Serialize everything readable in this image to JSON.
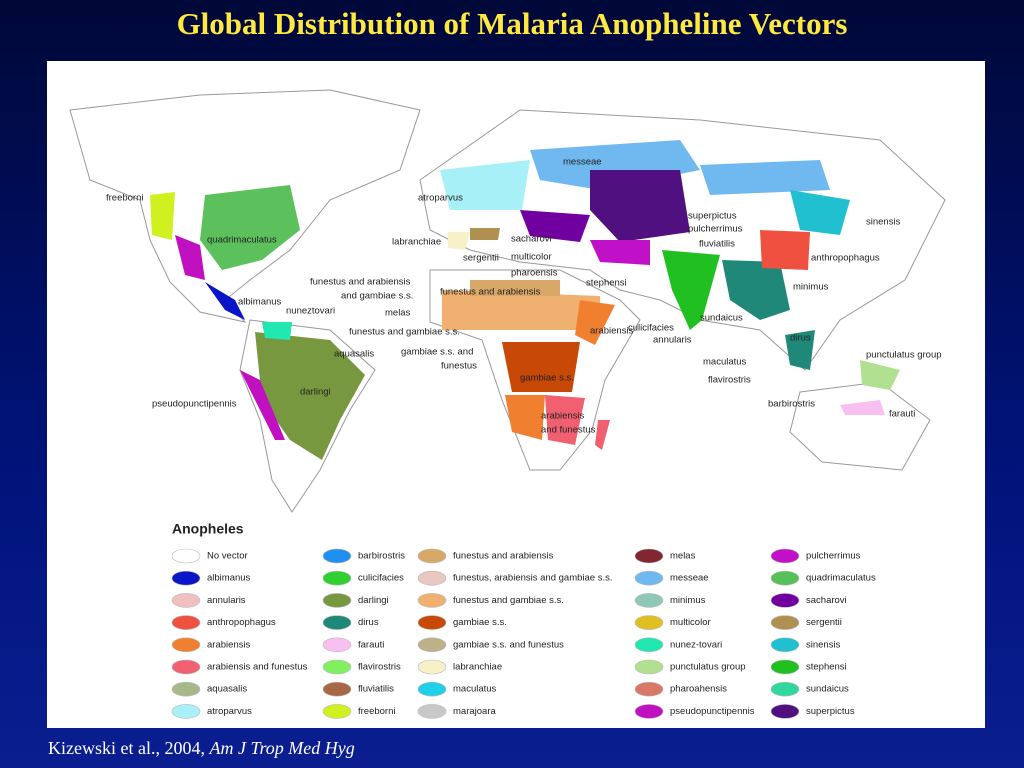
{
  "header": {
    "title": "Global Distribution of  Malaria Anopheline Vectors"
  },
  "map_labels": [
    "freeborni",
    "quadrimaculatus",
    "albimanus",
    "nuneztovari",
    "aquasalis",
    "darlingi",
    "pseudopunctipennis",
    "atroparvus",
    "labranchiae",
    "sergentii",
    "sacharovi",
    "multicolor",
    "pharoensis",
    "funestus and arabiensis",
    "and gambiae s.s.",
    "melas",
    "funestus and arabiensis",
    "funestus and gambiae s.s.",
    "gambiae s.s. and",
    "funestus",
    "messeae",
    "superpictus",
    "pulcherrimus",
    "fluviatilis",
    "stephensi",
    "culicifacies",
    "sundaicus",
    "annularis",
    "arabiensis",
    "gambiae s.s.",
    "arabiensis",
    "and funestus",
    "sinensis",
    "anthropophagus",
    "minimus",
    "dirus",
    "maculatus",
    "flavirostris",
    "barbirostris",
    "punctulatus group",
    "farauti"
  ],
  "legend": {
    "title": "Anopheles",
    "items": [
      {
        "label": "No vector",
        "color": "#ffffff"
      },
      {
        "label": "albimanus",
        "color": "#0a14c8"
      },
      {
        "label": "annularis",
        "color": "#f0c0c0"
      },
      {
        "label": "anthropophagus",
        "color": "#f05040"
      },
      {
        "label": "arabiensis",
        "color": "#f08030"
      },
      {
        "label": "arabiensis and funestus",
        "color": "#f06070"
      },
      {
        "label": "aquasalis",
        "color": "#a8b888"
      },
      {
        "label": "atroparvus",
        "color": "#a8f0f8"
      },
      {
        "label": "barbirostris",
        "color": "#2090f0"
      },
      {
        "label": "culicifacies",
        "color": "#30d030"
      },
      {
        "label": "darlingi",
        "color": "#789840"
      },
      {
        "label": "dirus",
        "color": "#208878"
      },
      {
        "label": "farauti",
        "color": "#f8c0f0"
      },
      {
        "label": "flavirostris",
        "color": "#80f060"
      },
      {
        "label": "fluviatilis",
        "color": "#a86848"
      },
      {
        "label": "freeborni",
        "color": "#d0f020"
      },
      {
        "label": "funestus and arabiensis",
        "color": "#d8a868"
      },
      {
        "label": "funestus, arabiensis and gambiae s.s.",
        "color": "#e8c8c0"
      },
      {
        "label": "funestus and gambiae s.s.",
        "color": "#f0b070"
      },
      {
        "label": "gambiae s.s.",
        "color": "#c84808"
      },
      {
        "label": "gambiae s.s. and funestus",
        "color": "#c0b088"
      },
      {
        "label": "labranchiae",
        "color": "#f8f0c8"
      },
      {
        "label": "maculatus",
        "color": "#20d0e8"
      },
      {
        "label": "marajoara",
        "color": "#c8c8c8"
      },
      {
        "label": "melas",
        "color": "#802830"
      },
      {
        "label": "messeae",
        "color": "#70b8f0"
      },
      {
        "label": "minimus",
        "color": "#90c8b8"
      },
      {
        "label": "multicolor",
        "color": "#e0c020"
      },
      {
        "label": "nunez-tovari",
        "color": "#20e8b0"
      },
      {
        "label": "punctulatus group",
        "color": "#b0e090"
      },
      {
        "label": "pharoahensis",
        "color": "#d87868"
      },
      {
        "label": "pseudopunctipennis",
        "color": "#c010c0"
      },
      {
        "label": "pulcherrimus",
        "color": "#c010c8"
      },
      {
        "label": "quadrimaculatus",
        "color": "#58c058"
      },
      {
        "label": "sacharovi",
        "color": "#7000a0"
      },
      {
        "label": "sergentii",
        "color": "#b09050"
      },
      {
        "label": "sinensis",
        "color": "#20c0d0"
      },
      {
        "label": "stephensi",
        "color": "#20c020"
      },
      {
        "label": "sundaicus",
        "color": "#30d8a0"
      },
      {
        "label": "superpictus",
        "color": "#501080"
      }
    ]
  },
  "citation": {
    "authors": "Kizewski et al., 2004,",
    "journal": "Am J Trop Med Hyg"
  }
}
